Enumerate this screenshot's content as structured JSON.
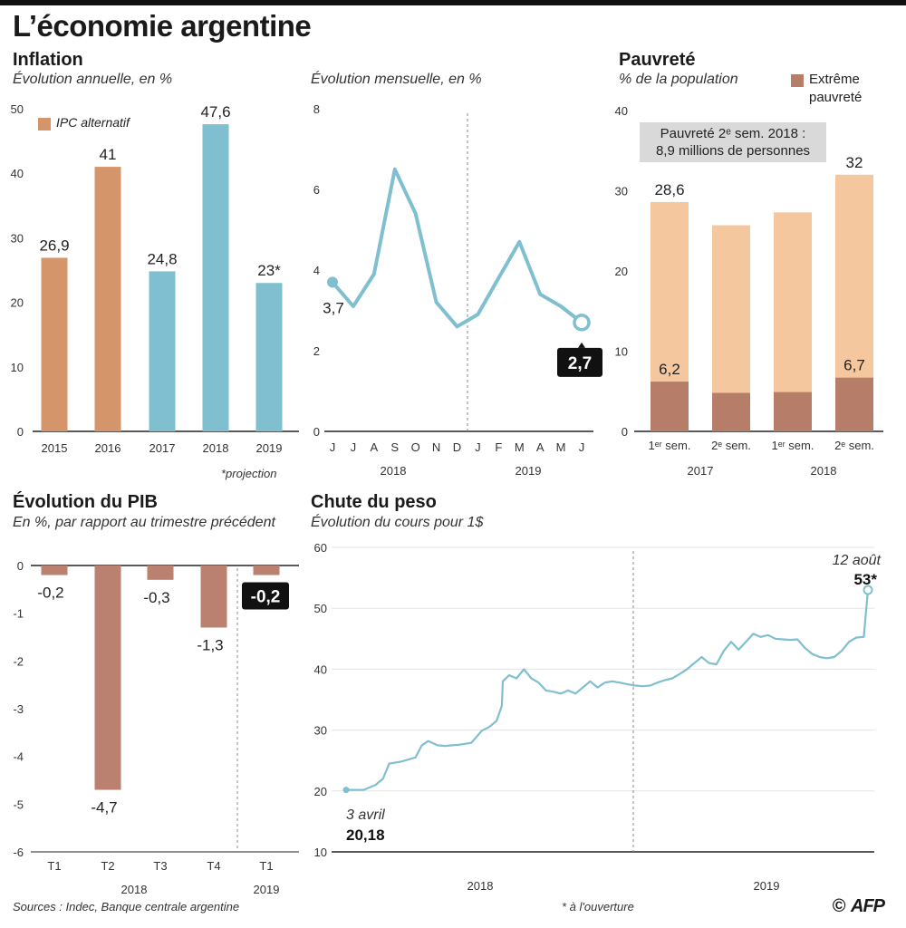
{
  "title": "L’économie argentine",
  "colors": {
    "inflation_alt": "#d4956a",
    "inflation_official": "#7fbfcf",
    "line": "#7fbfcf",
    "poverty": "#f4c79e",
    "extreme": "#b67d68",
    "gdp": "#bb8170",
    "peso": "#7fbfcf"
  },
  "inflation_annual": {
    "section_title": "Inflation",
    "subtitle": "Évolution annuelle, en %",
    "legend_label": "IPC alternatif",
    "footnote": "*projection",
    "chart_data": {
      "type": "bar",
      "categories": [
        "2015",
        "2016",
        "2017",
        "2018",
        "2019"
      ],
      "values": [
        26.9,
        41,
        24.8,
        47.6,
        23
      ],
      "value_labels": [
        "26,9",
        "41",
        "24,8",
        "47,6",
        "23*"
      ],
      "series_type": [
        "alternatif",
        "alternatif",
        "officiel",
        "officiel",
        "officiel"
      ],
      "ylim": [
        0,
        50
      ],
      "yticks": [
        "0",
        "10",
        "20",
        "30",
        "40",
        "50"
      ]
    }
  },
  "inflation_monthly": {
    "subtitle": "Évolution mensuelle, en %",
    "chart_data": {
      "type": "line",
      "x": [
        "J",
        "J",
        "A",
        "S",
        "O",
        "N",
        "D",
        "J",
        "F",
        "M",
        "A",
        "M",
        "J"
      ],
      "values": [
        3.7,
        3.1,
        3.9,
        6.5,
        5.4,
        3.2,
        2.6,
        2.9,
        3.8,
        4.7,
        3.4,
        3.1,
        2.7
      ],
      "start_label": "3,7",
      "end_label": "2,7",
      "year_labels": [
        "2018",
        "2019"
      ],
      "ylim": [
        0,
        8
      ],
      "yticks": [
        "0",
        "2",
        "4",
        "6",
        "8"
      ]
    }
  },
  "poverty": {
    "section_title": "Pauvreté",
    "subtitle": "% de la population",
    "legend_label_1": "Extrême",
    "legend_label_2": "pauvreté",
    "box_line_1": "Pauvreté 2ᵉ sem. 2018 :",
    "box_line_2": "8,9 millions de personnes",
    "chart_data": {
      "type": "bar",
      "categories": [
        "1ᵉʳ sem.",
        "2ᵉ sem.",
        "1ᵉʳ sem.",
        "2ᵉ sem."
      ],
      "year_labels": [
        "2017",
        "2018"
      ],
      "poverty_values": [
        28.6,
        25.7,
        27.3,
        32
      ],
      "extreme_values": [
        6.2,
        4.8,
        4.9,
        6.7
      ],
      "poverty_labels": [
        "28,6",
        "",
        "",
        "32"
      ],
      "extreme_labels": [
        "6,2",
        "",
        "",
        "6,7"
      ],
      "ylim": [
        0,
        40
      ],
      "yticks": [
        "0",
        "10",
        "20",
        "30",
        "40"
      ]
    }
  },
  "gdp": {
    "section_title": "Évolution du PIB",
    "subtitle": "En %, par rapport au trimestre précédent",
    "chart_data": {
      "type": "bar",
      "categories": [
        "T1",
        "T2",
        "T3",
        "T4",
        "T1"
      ],
      "values": [
        -0.2,
        -4.7,
        -0.3,
        -1.3,
        -0.2
      ],
      "value_labels": [
        "-0,2",
        "-4,7",
        "-0,3",
        "-1,3",
        "-0,2"
      ],
      "year_labels": [
        "2018",
        "2019"
      ],
      "ylim": [
        -6,
        0
      ],
      "yticks": [
        "0",
        "-1",
        "-2",
        "-3",
        "-4",
        "-5",
        "-6"
      ]
    }
  },
  "peso": {
    "section_title": "Chute du peso",
    "subtitle": "Évolution du cours pour 1$",
    "start_date": "3 avril",
    "start_value": "20,18",
    "end_date": "12 août",
    "end_value": "53*",
    "footnote": "* à l'ouverture",
    "chart_data": {
      "type": "line",
      "year_labels": [
        "2018",
        "2019"
      ],
      "ylim": [
        10,
        60
      ],
      "yticks": [
        "10",
        "20",
        "30",
        "40",
        "50",
        "60"
      ],
      "x": [
        "2018-04-03",
        "2018-04-20",
        "2018-05-01",
        "2018-05-08",
        "2018-05-14",
        "2018-05-25",
        "2018-06-08",
        "2018-06-14",
        "2018-06-20",
        "2018-06-29",
        "2018-07-06",
        "2018-07-13",
        "2018-07-20",
        "2018-07-31",
        "2018-08-10",
        "2018-08-17",
        "2018-08-24",
        "2018-08-29",
        "2018-08-30",
        "2018-09-05",
        "2018-09-12",
        "2018-09-19",
        "2018-09-26",
        "2018-10-03",
        "2018-10-10",
        "2018-10-17",
        "2018-10-24",
        "2018-10-31",
        "2018-11-07",
        "2018-11-14",
        "2018-11-21",
        "2018-11-28",
        "2018-12-05",
        "2018-12-12",
        "2018-12-19",
        "2018-12-27",
        "2019-01-03",
        "2019-01-10",
        "2019-01-17",
        "2019-01-24",
        "2019-01-31",
        "2019-02-07",
        "2019-02-14",
        "2019-02-21",
        "2019-02-28",
        "2019-03-07",
        "2019-03-14",
        "2019-03-21",
        "2019-03-28",
        "2019-04-04",
        "2019-04-11",
        "2019-04-18",
        "2019-04-25",
        "2019-05-02",
        "2019-05-09",
        "2019-05-16",
        "2019-05-23",
        "2019-05-30",
        "2019-06-06",
        "2019-06-13",
        "2019-06-20",
        "2019-06-27",
        "2019-07-04",
        "2019-07-11",
        "2019-07-18",
        "2019-07-25",
        "2019-08-01",
        "2019-08-08",
        "2019-08-12"
      ],
      "values": [
        20.18,
        20.2,
        21,
        22,
        24.5,
        24.8,
        25.5,
        27.5,
        28.2,
        27.5,
        27.4,
        27.5,
        27.6,
        27.9,
        29.9,
        30.5,
        31.5,
        34,
        38,
        39,
        38.5,
        40,
        38.5,
        37.8,
        36.5,
        36.3,
        36,
        36.5,
        36,
        37,
        38,
        37,
        37.8,
        38,
        37.8,
        37.5,
        37.3,
        37.2,
        37.3,
        37.8,
        38.2,
        38.5,
        39.2,
        40,
        41,
        42,
        41,
        40.8,
        43,
        44.5,
        43.2,
        44.5,
        45.8,
        45.3,
        45.6,
        45,
        44.9,
        44.8,
        44.9,
        43.5,
        42.5,
        42,
        41.8,
        42,
        43,
        44.5,
        45.2,
        45.3,
        53
      ]
    }
  },
  "footer": {
    "sources": "Sources : Indec, Banque centrale argentine",
    "copyright": "©",
    "agency": "AFP"
  }
}
